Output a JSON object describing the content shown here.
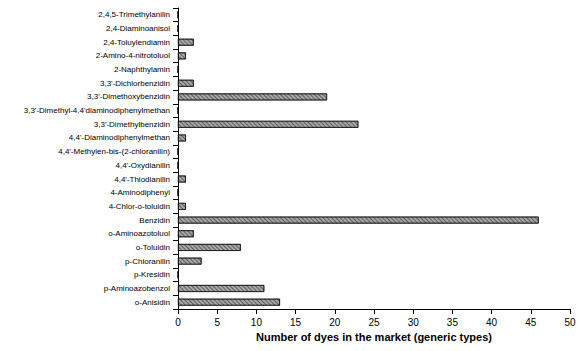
{
  "chart_data": {
    "type": "bar",
    "orientation": "horizontal",
    "x_label": "Number of dyes in the market (generic types)",
    "categories": [
      "2,4,5-Trimethylanilin",
      "2,4-Diaminoanisol",
      "2,4-Toluylendiamin",
      "2-Amino-4-nitrotoluol",
      "2-Naphthylamin",
      "3,3'-Dichlorbenzidin",
      "3,3'-Dimethoxybenzidin",
      "3,3'-Dimethyl-4,4'diaminodiphenylmethan",
      "3,3'-Dimethylbenzidin",
      "4,4'-Diaminodiphenylmethan",
      "4,4'-Methylen-bis-(2-chloranilin)",
      "4,4'-Oxydianilin",
      "4,4'-Thiodianilin",
      "4-Aminodiphenyl",
      "4-Chlor-o-toluidin",
      "Benzidin",
      "o-Aminoazotoluol",
      "o-Toluidin",
      "p-Chloranilin",
      "p-Kresidin",
      "p-Aminoazobenzol",
      "o-Anisidin"
    ],
    "values": [
      0,
      0,
      2,
      1,
      0,
      2,
      19,
      0,
      23,
      1,
      0,
      0,
      1,
      0,
      1,
      46,
      2,
      8,
      3,
      0,
      11,
      13
    ],
    "color": "#a8a8a8",
    "xlim": [
      0,
      50
    ],
    "xticks": [
      0,
      5,
      10,
      15,
      20,
      25,
      30,
      35,
      40,
      45,
      50
    ],
    "grid": false
  }
}
